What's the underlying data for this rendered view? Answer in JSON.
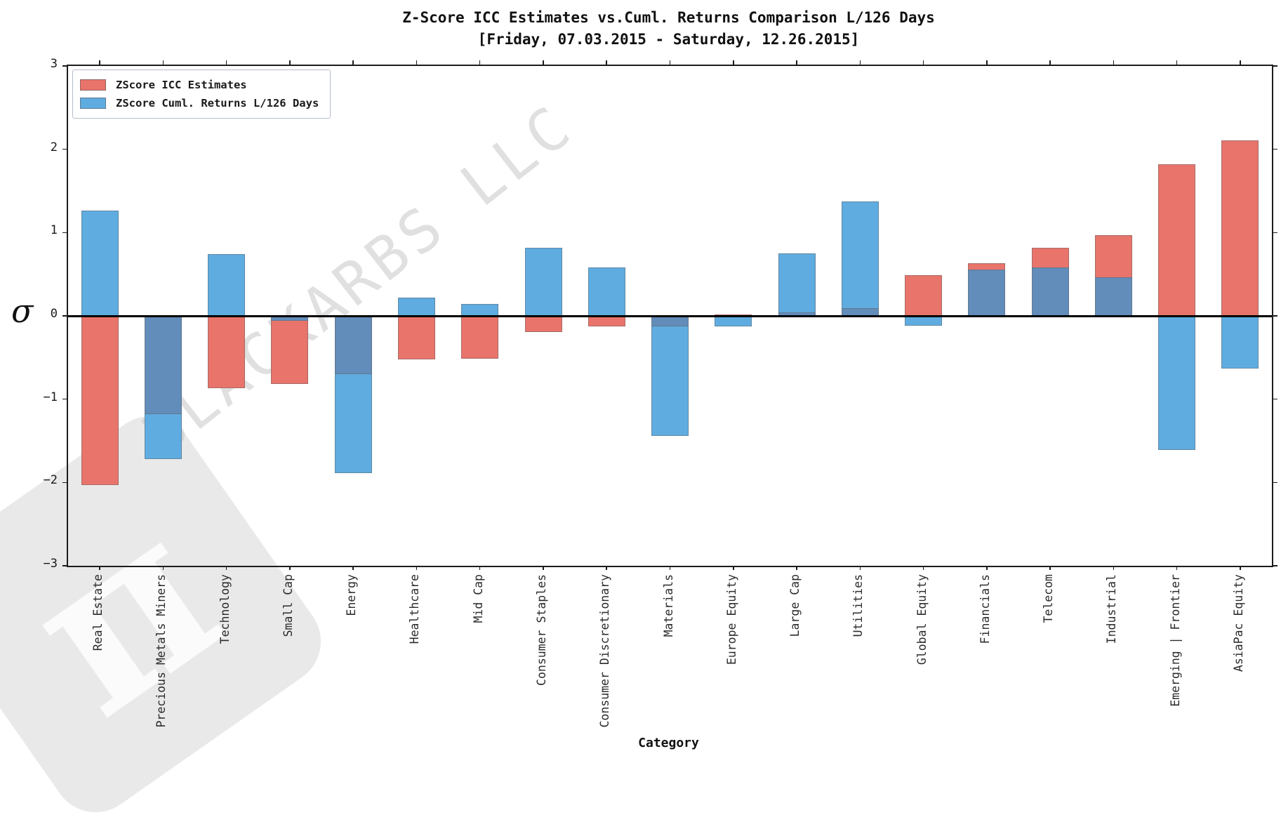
{
  "title": {
    "line1": "Z-Score ICC Estimates vs.Cuml. Returns Comparison L/126 Days",
    "line2": "[Friday, 07.03.2015 - Saturday, 12.26.2015]"
  },
  "legend": {
    "entries": [
      {
        "label": "ZScore ICC Estimates",
        "color": "#E8746B"
      },
      {
        "label": "ZScore Cuml. Returns L/126 Days",
        "color": "#5FACE0"
      }
    ]
  },
  "watermark_text": "BLACKARBS LLC",
  "logo_glyph": "π",
  "chart_data": {
    "type": "bar",
    "title": "Z-Score ICC Estimates vs.Cuml. Returns Comparison L/126 Days [Friday, 07.03.2015 - Saturday, 12.26.2015]",
    "xlabel": "Category",
    "ylabel": "σ",
    "ylim": [
      -3,
      3
    ],
    "yticks": [
      3,
      2,
      1,
      0,
      -1,
      -2,
      -3
    ],
    "ytick_labels": [
      "3",
      "2",
      "1",
      "0",
      "−1",
      "−2",
      "−3"
    ],
    "grid": false,
    "legend_position": "upper left",
    "bar_style": "overlapped",
    "colors": {
      "icc": "#E8746B",
      "returns": "#5FACE0",
      "overlap": "#628CBA",
      "edge": "rgba(100,100,100,0.5)",
      "zero_line": "#000000"
    },
    "categories": [
      "Real Estate",
      "Precious Metals Miners",
      "Technology",
      "Small Cap",
      "Energy",
      "Healthcare",
      "Mid Cap",
      "Consumer Staples",
      "Consumer Discretionary",
      "Materials",
      "Europe Equity",
      "Large Cap",
      "Utilities",
      "Global Equity",
      "Financials",
      "Telecom",
      "Industrial",
      "Emerging | Frontier",
      "AsiaPac Equity"
    ],
    "series": [
      {
        "name": "ZScore ICC Estimates",
        "values": [
          -2.03,
          -1.18,
          -0.87,
          -0.82,
          -0.7,
          -0.52,
          -0.51,
          -0.19,
          -0.13,
          -0.13,
          0.02,
          0.04,
          0.09,
          0.49,
          0.63,
          0.82,
          0.97,
          1.82,
          2.11
        ]
      },
      {
        "name": "ZScore Cuml. Returns L/126 Days",
        "values": [
          1.26,
          -1.72,
          0.74,
          -0.06,
          -1.89,
          0.22,
          0.14,
          0.82,
          0.58,
          -1.44,
          -0.13,
          0.75,
          1.37,
          -0.12,
          0.56,
          0.58,
          0.46,
          -1.61,
          -0.63
        ]
      }
    ]
  }
}
